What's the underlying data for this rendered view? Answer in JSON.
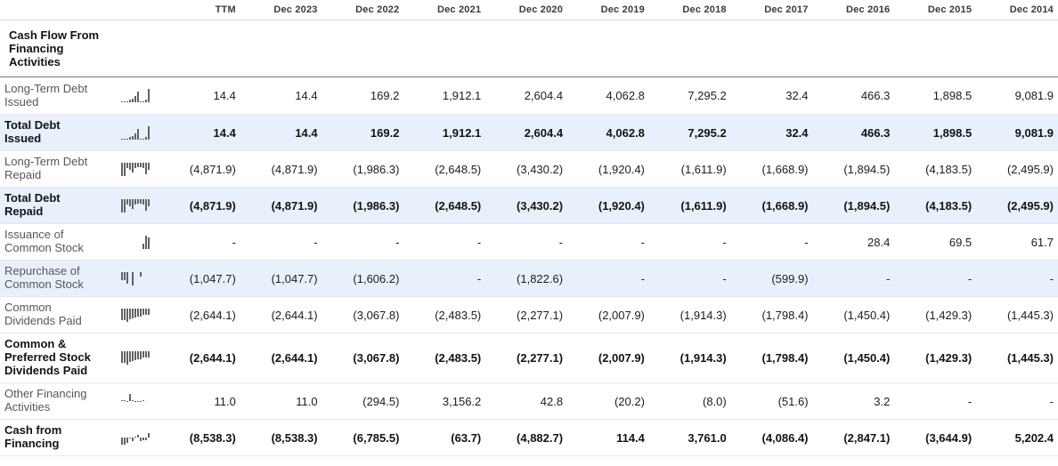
{
  "table": {
    "section_title": "Cash Flow From Financing Activities",
    "columns": [
      "TTM",
      "Dec 2023",
      "Dec 2022",
      "Dec 2021",
      "Dec 2020",
      "Dec 2019",
      "Dec 2018",
      "Dec 2017",
      "Dec 2016",
      "Dec 2015",
      "Dec 2014"
    ],
    "rows": [
      {
        "label": "Long-Term Debt Issued",
        "bold": false,
        "highlighted": false,
        "values": [
          "14.4",
          "14.4",
          "169.2",
          "1,912.1",
          "2,604.4",
          "4,062.8",
          "7,295.2",
          "32.4",
          "466.3",
          "1,898.5",
          "9,081.9"
        ]
      },
      {
        "label": "Total Debt Issued",
        "bold": true,
        "highlighted": true,
        "values": [
          "14.4",
          "14.4",
          "169.2",
          "1,912.1",
          "2,604.4",
          "4,062.8",
          "7,295.2",
          "32.4",
          "466.3",
          "1,898.5",
          "9,081.9"
        ]
      },
      {
        "label": "Long-Term Debt Repaid",
        "bold": false,
        "highlighted": false,
        "values": [
          "(4,871.9)",
          "(4,871.9)",
          "(1,986.3)",
          "(2,648.5)",
          "(3,430.2)",
          "(1,920.4)",
          "(1,611.9)",
          "(1,668.9)",
          "(1,894.5)",
          "(4,183.5)",
          "(2,495.9)"
        ]
      },
      {
        "label": "Total Debt Repaid",
        "bold": true,
        "highlighted": true,
        "values": [
          "(4,871.9)",
          "(4,871.9)",
          "(1,986.3)",
          "(2,648.5)",
          "(3,430.2)",
          "(1,920.4)",
          "(1,611.9)",
          "(1,668.9)",
          "(1,894.5)",
          "(4,183.5)",
          "(2,495.9)"
        ]
      },
      {
        "label": "Issuance of Common Stock",
        "bold": false,
        "highlighted": false,
        "values": [
          "-",
          "-",
          "-",
          "-",
          "-",
          "-",
          "-",
          "-",
          "28.4",
          "69.5",
          "61.7"
        ]
      },
      {
        "label": "Repurchase of Common Stock",
        "bold": false,
        "highlighted": true,
        "values": [
          "(1,047.7)",
          "(1,047.7)",
          "(1,606.2)",
          "-",
          "(1,822.6)",
          "-",
          "-",
          "(599.9)",
          "-",
          "-",
          "-"
        ]
      },
      {
        "label": "Common Dividends Paid",
        "bold": false,
        "highlighted": false,
        "values": [
          "(2,644.1)",
          "(2,644.1)",
          "(3,067.8)",
          "(2,483.5)",
          "(2,277.1)",
          "(2,007.9)",
          "(1,914.3)",
          "(1,798.4)",
          "(1,450.4)",
          "(1,429.3)",
          "(1,445.3)"
        ]
      },
      {
        "label": "Common & Preferred Stock Dividends Paid",
        "bold": true,
        "highlighted": false,
        "values": [
          "(2,644.1)",
          "(2,644.1)",
          "(3,067.8)",
          "(2,483.5)",
          "(2,277.1)",
          "(2,007.9)",
          "(1,914.3)",
          "(1,798.4)",
          "(1,450.4)",
          "(1,429.3)",
          "(1,445.3)"
        ]
      },
      {
        "label": "Other Financing Activities",
        "bold": false,
        "highlighted": false,
        "values": [
          "11.0",
          "11.0",
          "(294.5)",
          "3,156.2",
          "42.8",
          "(20.2)",
          "(8.0)",
          "(51.6)",
          "3.2",
          "-",
          "-"
        ]
      },
      {
        "label": "Cash from Financing",
        "bold": true,
        "highlighted": false,
        "values": [
          "(8,538.3)",
          "(8,538.3)",
          "(6,785.5)",
          "(63.7)",
          "(4,882.7)",
          "114.4",
          "3,761.0",
          "(4,086.4)",
          "(2,847.1)",
          "(3,644.9)",
          "5,202.4"
        ]
      }
    ]
  },
  "icons": {
    "sparkline": "mini-bar-chart-icon"
  },
  "colors": {
    "highlight_row_bg": "#e8f1fb",
    "label_color": "#57575a",
    "value_color": "#1c1c1e",
    "bold_text_color": "#131315",
    "header_text_color": "#3a3a3c",
    "sparkline_color": "#636366",
    "section_divider": "#6e7377",
    "row_divider": "#e6e7e9"
  }
}
